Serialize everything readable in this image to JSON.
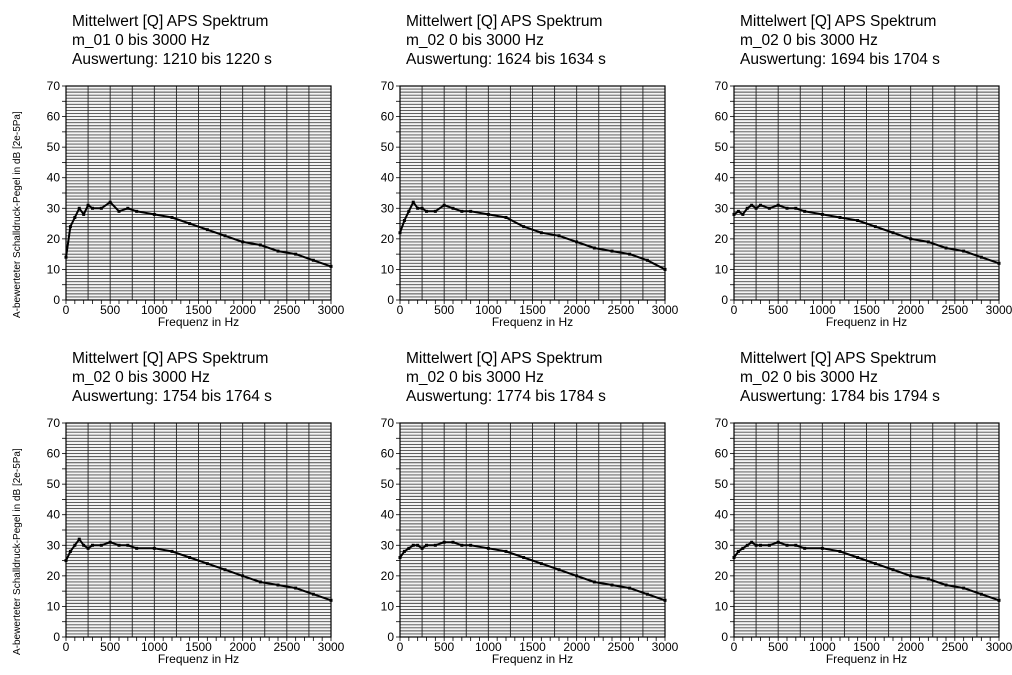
{
  "ylabel": "A-bewerteter Schalldruck-Pegel in dB [2e-5Pa]",
  "xlabel": "Frequenz in Hz",
  "chart_data": [
    {
      "type": "line",
      "title": [
        "Mittelwert [Q] APS Spektrum",
        "m_01 0 bis  3000 Hz",
        "Auswertung: 1210 bis 1220 s"
      ],
      "xlabel": "Frequenz in Hz",
      "ylabel": "A-bewerteter Schalldruck-Pegel in dB [2e-5Pa]",
      "xlim": [
        0,
        3000
      ],
      "ylim": [
        0,
        70
      ],
      "xticks": [
        0,
        500,
        1000,
        1500,
        2000,
        2500,
        3000
      ],
      "yticks": [
        0,
        10,
        20,
        30,
        40,
        50,
        60,
        70
      ],
      "grid": true,
      "series": [
        {
          "x": [
            0,
            50,
            100,
            150,
            200,
            250,
            300,
            400,
            500,
            600,
            700,
            800,
            1000,
            1200,
            1400,
            1600,
            1800,
            2000,
            2200,
            2400,
            2600,
            2800,
            3000
          ],
          "y": [
            14,
            24,
            27,
            30,
            28,
            31,
            30,
            30,
            32,
            29,
            30,
            29,
            28,
            27,
            25,
            23,
            21,
            19,
            18,
            16,
            15,
            13,
            11
          ]
        }
      ]
    },
    {
      "type": "line",
      "title": [
        "Mittelwert [Q] APS Spektrum",
        "m_02 0 bis  3000 Hz",
        "Auswertung: 1624 bis 1634 s"
      ],
      "xlabel": "Frequenz in Hz",
      "xlim": [
        0,
        3000
      ],
      "ylim": [
        0,
        70
      ],
      "xticks": [
        0,
        500,
        1000,
        1500,
        2000,
        2500,
        3000
      ],
      "yticks": [
        0,
        10,
        20,
        30,
        40,
        50,
        60,
        70
      ],
      "grid": true,
      "series": [
        {
          "x": [
            0,
            50,
            100,
            150,
            200,
            250,
            300,
            400,
            500,
            600,
            700,
            800,
            1000,
            1200,
            1400,
            1600,
            1800,
            2000,
            2200,
            2400,
            2600,
            2800,
            3000
          ],
          "y": [
            22,
            26,
            29,
            32,
            30,
            30,
            29,
            29,
            31,
            30,
            29,
            29,
            28,
            27,
            24,
            22,
            21,
            19,
            17,
            16,
            15,
            13,
            10
          ]
        }
      ]
    },
    {
      "type": "line",
      "title": [
        "Mittelwert [Q] APS Spektrum",
        "m_02 0 bis  3000 Hz",
        "Auswertung: 1694 bis 1704 s"
      ],
      "xlabel": "Frequenz in Hz",
      "xlim": [
        0,
        3000
      ],
      "ylim": [
        0,
        70
      ],
      "xticks": [
        0,
        500,
        1000,
        1500,
        2000,
        2500,
        3000
      ],
      "yticks": [
        0,
        10,
        20,
        30,
        40,
        50,
        60,
        70
      ],
      "grid": true,
      "series": [
        {
          "x": [
            0,
            50,
            100,
            150,
            200,
            250,
            300,
            400,
            500,
            600,
            700,
            800,
            1000,
            1200,
            1400,
            1600,
            1800,
            2000,
            2200,
            2400,
            2600,
            2800,
            3000
          ],
          "y": [
            28,
            29,
            28,
            30,
            31,
            30,
            31,
            30,
            31,
            30,
            30,
            29,
            28,
            27,
            26,
            24,
            22,
            20,
            19,
            17,
            16,
            14,
            12
          ]
        }
      ]
    },
    {
      "type": "line",
      "title": [
        "Mittelwert [Q] APS Spektrum",
        "m_02 0 bis  3000 Hz",
        "Auswertung: 1754 bis 1764 s"
      ],
      "xlabel": "Frequenz in Hz",
      "ylabel": "A-bewerteter Schalldruck-Pegel in dB [2e-5Pa]",
      "xlim": [
        0,
        3000
      ],
      "ylim": [
        0,
        70
      ],
      "xticks": [
        0,
        500,
        1000,
        1500,
        2000,
        2500,
        3000
      ],
      "yticks": [
        0,
        10,
        20,
        30,
        40,
        50,
        60,
        70
      ],
      "grid": true,
      "series": [
        {
          "x": [
            0,
            50,
            100,
            150,
            200,
            250,
            300,
            400,
            500,
            600,
            700,
            800,
            1000,
            1200,
            1400,
            1600,
            1800,
            2000,
            2200,
            2400,
            2600,
            2800,
            3000
          ],
          "y": [
            25,
            28,
            30,
            32,
            30,
            29,
            30,
            30,
            31,
            30,
            30,
            29,
            29,
            28,
            26,
            24,
            22,
            20,
            18,
            17,
            16,
            14,
            12
          ]
        }
      ]
    },
    {
      "type": "line",
      "title": [
        "Mittelwert [Q] APS Spektrum",
        "m_02 0 bis  3000 Hz",
        "Auswertung: 1774 bis 1784 s"
      ],
      "xlabel": "Frequenz in Hz",
      "xlim": [
        0,
        3000
      ],
      "ylim": [
        0,
        70
      ],
      "xticks": [
        0,
        500,
        1000,
        1500,
        2000,
        2500,
        3000
      ],
      "yticks": [
        0,
        10,
        20,
        30,
        40,
        50,
        60,
        70
      ],
      "grid": true,
      "series": [
        {
          "x": [
            0,
            50,
            100,
            150,
            200,
            250,
            300,
            400,
            500,
            600,
            700,
            800,
            1000,
            1200,
            1400,
            1600,
            1800,
            2000,
            2200,
            2400,
            2600,
            2800,
            3000
          ],
          "y": [
            26,
            28,
            29,
            30,
            30,
            29,
            30,
            30,
            31,
            31,
            30,
            30,
            29,
            28,
            26,
            24,
            22,
            20,
            18,
            17,
            16,
            14,
            12
          ]
        }
      ]
    },
    {
      "type": "line",
      "title": [
        "Mittelwert [Q] APS Spektrum",
        "m_02 0 bis  3000 Hz",
        "Auswertung: 1784 bis 1794 s"
      ],
      "xlabel": "Frequenz in Hz",
      "xlim": [
        0,
        3000
      ],
      "ylim": [
        0,
        70
      ],
      "xticks": [
        0,
        500,
        1000,
        1500,
        2000,
        2500,
        3000
      ],
      "yticks": [
        0,
        10,
        20,
        30,
        40,
        50,
        60,
        70
      ],
      "grid": true,
      "series": [
        {
          "x": [
            0,
            50,
            100,
            150,
            200,
            250,
            300,
            400,
            500,
            600,
            700,
            800,
            1000,
            1200,
            1400,
            1600,
            1800,
            2000,
            2200,
            2400,
            2600,
            2800,
            3000
          ],
          "y": [
            26,
            28,
            29,
            30,
            31,
            30,
            30,
            30,
            31,
            30,
            30,
            29,
            29,
            28,
            26,
            24,
            22,
            20,
            19,
            17,
            16,
            14,
            12
          ]
        }
      ]
    }
  ]
}
